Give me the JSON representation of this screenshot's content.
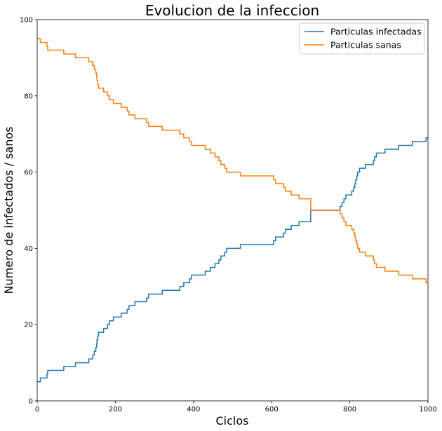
{
  "chart_data": {
    "type": "line",
    "title": "Evolucion de la infeccion",
    "xlabel": "Ciclos",
    "ylabel": "Numero de infectados / sanos",
    "xlim": [
      0,
      1000
    ],
    "ylim": [
      0,
      100
    ],
    "xticks": [
      "0",
      "200",
      "400",
      "600",
      "800",
      "1000"
    ],
    "yticks": [
      "0",
      "20",
      "40",
      "60",
      "80",
      "100"
    ],
    "legend_position": "top-right",
    "series": [
      {
        "name": "Particulas infectadas",
        "color": "#1f77b4",
        "x": [
          0,
          3,
          8,
          22,
          25,
          27,
          65,
          68,
          95,
          98,
          128,
          132,
          138,
          142,
          146,
          150,
          152,
          153,
          154,
          155,
          156,
          157,
          158,
          160,
          162,
          165,
          170,
          175,
          180,
          185,
          190,
          195,
          200,
          205,
          210,
          215,
          230,
          235,
          245,
          250,
          255,
          260,
          280,
          285,
          290,
          295,
          320,
          325,
          330,
          335,
          365,
          368,
          375,
          380,
          390,
          395,
          425,
          430,
          440,
          443,
          450,
          455,
          465,
          470,
          475,
          480,
          485,
          490,
          495,
          500,
          520,
          525,
          605,
          610,
          630,
          635,
          650,
          655,
          670,
          675,
          700,
          710,
          770,
          775,
          780,
          785,
          790,
          795,
          800,
          805,
          810,
          813,
          815,
          818,
          820,
          823,
          825,
          828,
          830,
          833,
          835,
          840,
          860,
          863,
          865,
          868,
          870,
          873,
          880,
          885,
          890,
          895,
          925,
          930,
          960,
          965,
          995,
          998,
          1000
        ],
        "y": [
          5,
          5,
          6,
          6,
          7,
          8,
          8,
          9,
          9,
          10,
          10,
          11,
          11,
          12,
          13,
          14,
          15,
          16,
          16,
          17,
          17,
          18,
          18,
          18,
          18,
          18,
          19,
          19,
          20,
          21,
          21,
          22,
          22,
          22,
          22,
          23,
          24,
          25,
          25,
          26,
          26,
          26,
          27,
          28,
          28,
          28,
          29,
          29,
          29,
          29,
          30,
          30,
          31,
          31,
          32,
          33,
          33,
          34,
          34,
          35,
          35,
          36,
          37,
          38,
          38,
          39,
          40,
          40,
          40,
          40,
          41,
          41,
          42,
          43,
          44,
          45,
          46,
          46,
          47,
          47,
          50,
          50,
          50,
          51,
          52,
          53,
          54,
          54,
          54,
          55,
          56,
          57,
          58,
          59,
          60,
          60,
          61,
          61,
          61,
          61,
          61,
          62,
          63,
          64,
          64,
          65,
          65,
          65,
          65,
          65,
          66,
          66,
          67,
          67,
          68,
          68,
          69,
          69,
          69
        ]
      },
      {
        "name": "Particulas sanas",
        "color": "#ff7f0e",
        "x": [
          0,
          3,
          8,
          22,
          25,
          27,
          65,
          68,
          95,
          98,
          128,
          132,
          138,
          142,
          146,
          150,
          152,
          153,
          154,
          155,
          156,
          157,
          158,
          160,
          162,
          165,
          170,
          175,
          180,
          185,
          190,
          195,
          200,
          205,
          210,
          215,
          230,
          235,
          245,
          250,
          255,
          260,
          280,
          285,
          290,
          295,
          320,
          325,
          330,
          335,
          365,
          368,
          375,
          380,
          390,
          395,
          425,
          430,
          440,
          443,
          450,
          455,
          465,
          470,
          475,
          480,
          485,
          490,
          495,
          500,
          520,
          525,
          605,
          610,
          630,
          635,
          650,
          655,
          670,
          675,
          700,
          710,
          770,
          775,
          780,
          785,
          790,
          795,
          800,
          805,
          810,
          813,
          815,
          818,
          820,
          823,
          825,
          828,
          830,
          833,
          835,
          840,
          860,
          863,
          865,
          868,
          870,
          873,
          880,
          885,
          890,
          895,
          925,
          930,
          960,
          965,
          995,
          998,
          1000
        ],
        "y": [
          95,
          95,
          94,
          94,
          93,
          92,
          92,
          91,
          91,
          90,
          90,
          89,
          89,
          88,
          87,
          86,
          85,
          84,
          84,
          83,
          83,
          82,
          82,
          82,
          82,
          82,
          81,
          81,
          80,
          79,
          79,
          78,
          78,
          78,
          78,
          77,
          76,
          75,
          75,
          74,
          74,
          74,
          73,
          72,
          72,
          72,
          71,
          71,
          71,
          71,
          70,
          70,
          69,
          69,
          68,
          67,
          67,
          66,
          66,
          65,
          65,
          64,
          63,
          62,
          62,
          61,
          60,
          60,
          60,
          60,
          59,
          59,
          58,
          57,
          56,
          55,
          54,
          54,
          53,
          53,
          50,
          50,
          50,
          49,
          48,
          47,
          46,
          46,
          46,
          45,
          44,
          43,
          42,
          41,
          40,
          40,
          39,
          39,
          39,
          39,
          39,
          38,
          37,
          36,
          36,
          35,
          35,
          35,
          35,
          35,
          34,
          34,
          33,
          33,
          32,
          32,
          31,
          31,
          31
        ]
      }
    ]
  }
}
